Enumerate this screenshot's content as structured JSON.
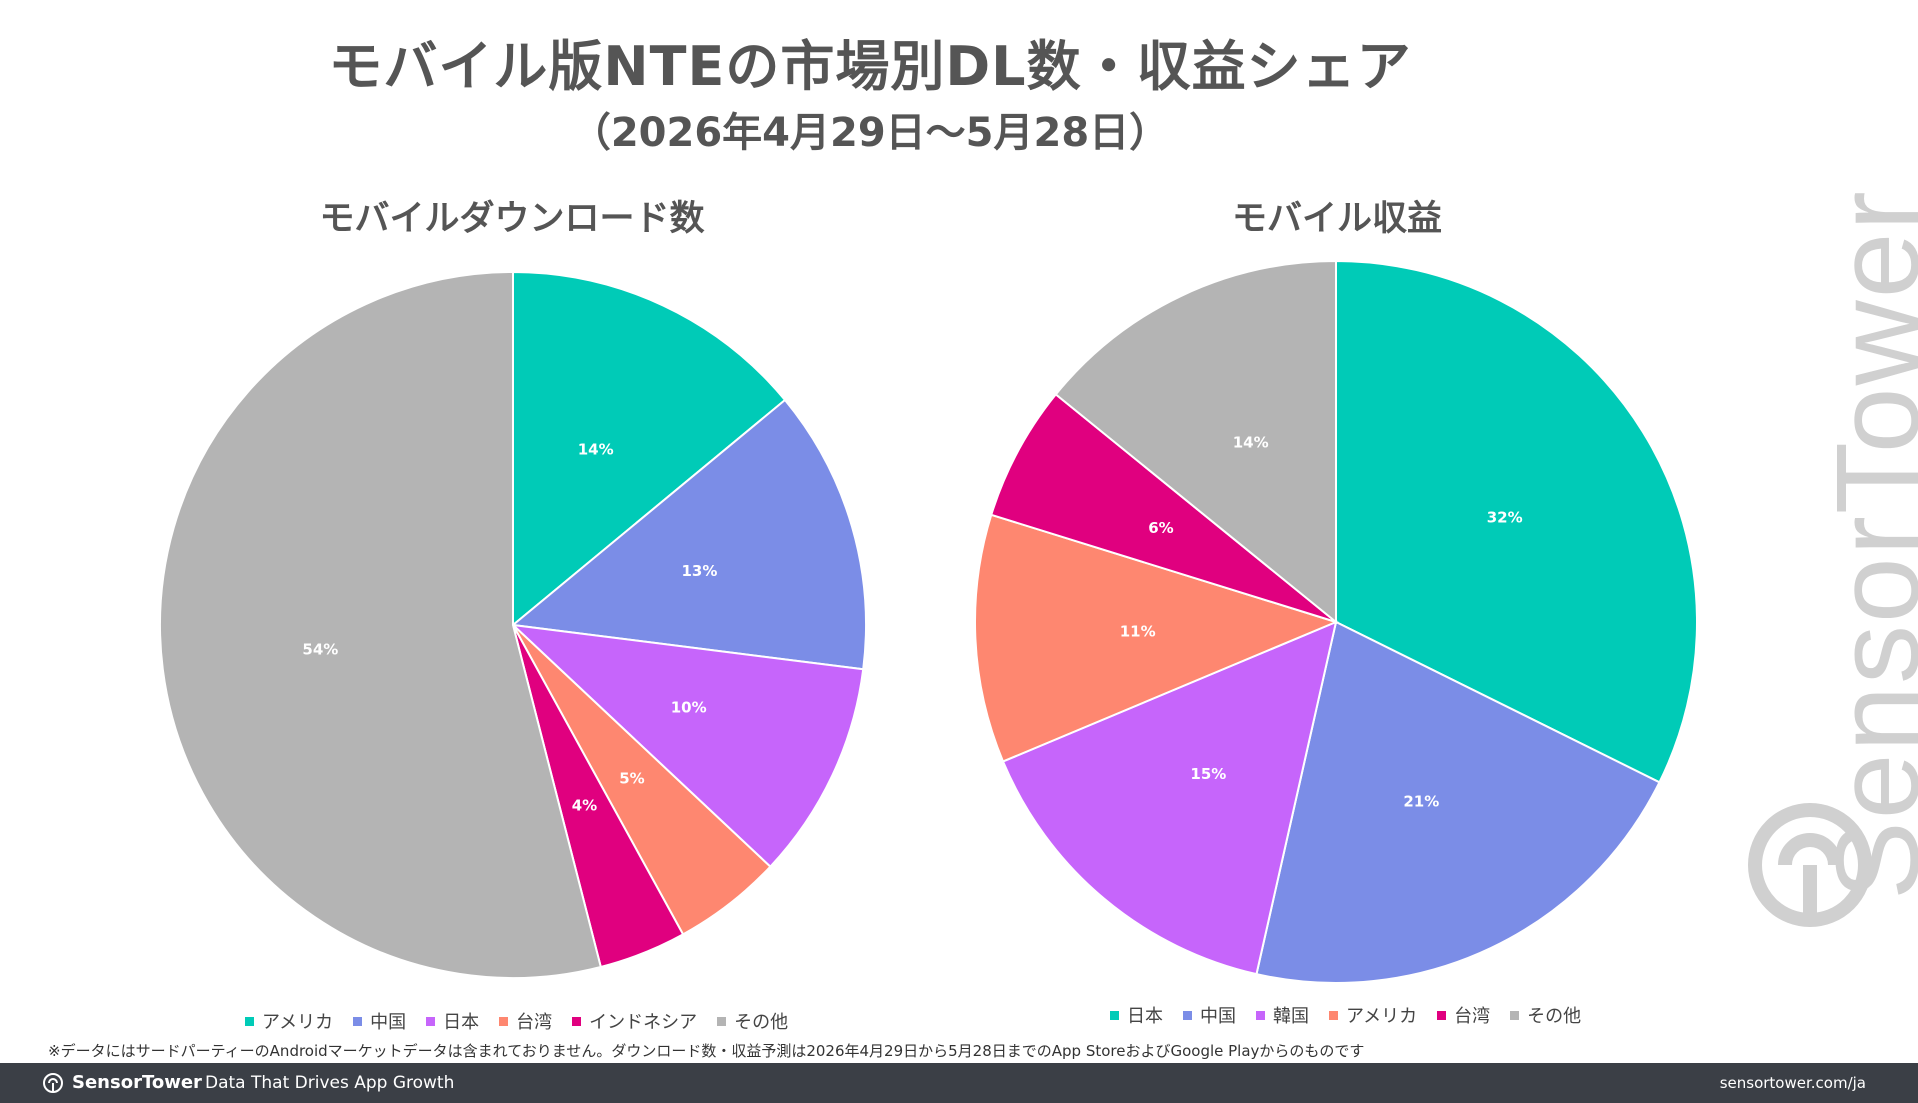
{
  "title": "モバイル版NTEの市場別DL数・収益シェア",
  "subtitle": "（2026年4月29日～5月28日）",
  "colors": {
    "america": "#00cbb7",
    "china": "#7b8de7",
    "japan": "#c665fb",
    "taiwan": "#fe8770",
    "indonesia": "#e0007f",
    "other": "#b4b4b4",
    "korea": "#c665fb"
  },
  "chart_data": [
    {
      "type": "pie",
      "title": "モバイルダウンロード数",
      "slices": [
        {
          "label": "アメリカ",
          "value": 14,
          "display": "14%",
          "color": "#00cbb7"
        },
        {
          "label": "中国",
          "value": 13,
          "display": "13%",
          "color": "#7b8de7"
        },
        {
          "label": "日本",
          "value": 10,
          "display": "10%",
          "color": "#c665fb"
        },
        {
          "label": "台湾",
          "value": 5,
          "display": "5%",
          "color": "#fe8770"
        },
        {
          "label": "インドネシア",
          "value": 4,
          "display": "4%",
          "color": "#e0007f"
        },
        {
          "label": "その他",
          "value": 54,
          "display": "54%",
          "color": "#b4b4b4"
        }
      ],
      "legend": [
        "アメリカ",
        "中国",
        "日本",
        "台湾",
        "インドネシア",
        "その他"
      ],
      "legend_colors": [
        "#00cbb7",
        "#7b8de7",
        "#c665fb",
        "#fe8770",
        "#e0007f",
        "#b4b4b4"
      ],
      "legend_position": "bottom"
    },
    {
      "type": "pie",
      "title": "モバイル収益",
      "slices": [
        {
          "label": "日本",
          "value": 32,
          "display": "32%",
          "color": "#00cbb7"
        },
        {
          "label": "中国",
          "value": 21,
          "display": "21%",
          "color": "#7b8de7"
        },
        {
          "label": "韓国",
          "value": 15,
          "display": "15%",
          "color": "#c665fb"
        },
        {
          "label": "アメリカ",
          "value": 11,
          "display": "11%",
          "color": "#fe8770"
        },
        {
          "label": "台湾",
          "value": 6,
          "display": "6%",
          "color": "#e0007f"
        },
        {
          "label": "その他",
          "value": 14,
          "display": "14%",
          "color": "#b4b4b4"
        }
      ],
      "legend": [
        "日本",
        "中国",
        "韓国",
        "アメリカ",
        "台湾",
        "その他"
      ],
      "legend_colors": [
        "#00cbb7",
        "#7b8de7",
        "#c665fb",
        "#fe8770",
        "#e0007f",
        "#b4b4b4"
      ],
      "legend_position": "bottom"
    }
  ],
  "footnote": "※データにはサードパーティーのAndroidマーケットデータは含まれておりません。ダウンロード数・収益予測は2026年4月29日から5月28日までのApp StoreおよびGoogle Playからのものです",
  "footer": {
    "brand": "SensorTower",
    "tagline": "Data That Drives App Growth",
    "url": "sensortower.com/ja"
  },
  "watermark": {
    "text": "SensorTower",
    "icon": "sensortower-logo-icon"
  }
}
